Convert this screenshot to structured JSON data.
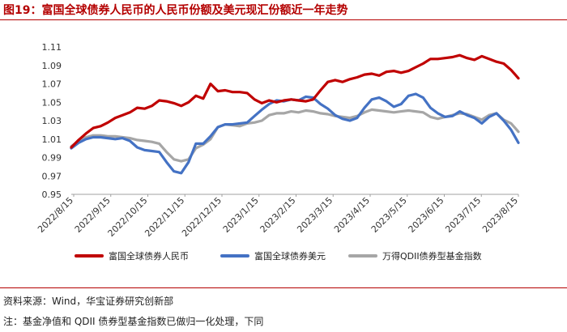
{
  "title": "图19：富国全球债券人民币的人民币份额及美元现汇份额近一年走势",
  "source": "资料来源：Wind，华宝证券研究创新部",
  "note": "注：基金净值和 QDII 债券型基金指数已做归一化处理，下同",
  "chart_data": {
    "type": "line",
    "title": "",
    "xlabel": "",
    "ylabel": "",
    "ylim": [
      0.95,
      1.11
    ],
    "yticks": [
      0.95,
      0.97,
      0.99,
      1.01,
      1.03,
      1.05,
      1.07,
      1.09,
      1.11
    ],
    "ytick_labels": [
      "0.95",
      "0.97",
      "0.99",
      "1.01",
      "1.03",
      "1.05",
      "1.07",
      "1.09",
      "1.11"
    ],
    "xticks": [
      "2022/8/15",
      "2022/9/15",
      "2022/10/15",
      "2022/11/15",
      "2022/12/15",
      "2023/1/15",
      "2023/2/15",
      "2023/3/15",
      "2023/4/15",
      "2023/5/15",
      "2023/6/15",
      "2023/7/15",
      "2023/8/15"
    ],
    "x_labels_rotated": true,
    "grid": false,
    "legend": "bottom",
    "series": [
      {
        "name": "富国全球债券人民币",
        "color": "#c00000",
        "values": [
          1.001,
          1.009,
          1.016,
          1.022,
          1.024,
          1.028,
          1.033,
          1.036,
          1.039,
          1.044,
          1.043,
          1.046,
          1.052,
          1.051,
          1.049,
          1.046,
          1.05,
          1.057,
          1.054,
          1.07,
          1.062,
          1.063,
          1.061,
          1.061,
          1.06,
          1.053,
          1.049,
          1.052,
          1.05,
          1.052,
          1.053,
          1.052,
          1.051,
          1.053,
          1.063,
          1.072,
          1.074,
          1.072,
          1.075,
          1.077,
          1.08,
          1.081,
          1.079,
          1.083,
          1.084,
          1.082,
          1.084,
          1.088,
          1.092,
          1.097,
          1.097,
          1.098,
          1.099,
          1.101,
          1.098,
          1.096,
          1.1,
          1.097,
          1.094,
          1.092,
          1.085,
          1.076
        ]
      },
      {
        "name": "富国全球债券美元",
        "color": "#4472c4",
        "values": [
          1.0,
          1.006,
          1.01,
          1.012,
          1.012,
          1.011,
          1.01,
          1.011,
          1.008,
          1.001,
          0.998,
          0.997,
          0.996,
          0.985,
          0.975,
          0.973,
          0.985,
          1.005,
          1.005,
          1.013,
          1.023,
          1.026,
          1.026,
          1.027,
          1.028,
          1.035,
          1.042,
          1.048,
          1.052,
          1.051,
          1.053,
          1.052,
          1.056,
          1.055,
          1.048,
          1.043,
          1.036,
          1.032,
          1.03,
          1.033,
          1.044,
          1.053,
          1.055,
          1.051,
          1.045,
          1.048,
          1.057,
          1.059,
          1.055,
          1.044,
          1.038,
          1.034,
          1.035,
          1.04,
          1.036,
          1.033,
          1.027,
          1.034,
          1.038,
          1.03,
          1.02,
          1.006
        ]
      },
      {
        "name": "万得QDII债券型基金指数",
        "color": "#a6a6a6",
        "values": [
          1.002,
          1.008,
          1.012,
          1.014,
          1.014,
          1.013,
          1.013,
          1.012,
          1.011,
          1.009,
          1.008,
          1.007,
          1.005,
          0.996,
          0.988,
          0.986,
          0.988,
          1.0,
          1.004,
          1.01,
          1.023,
          1.026,
          1.025,
          1.024,
          1.027,
          1.028,
          1.03,
          1.036,
          1.038,
          1.038,
          1.04,
          1.039,
          1.041,
          1.04,
          1.038,
          1.037,
          1.035,
          1.034,
          1.033,
          1.035,
          1.039,
          1.042,
          1.041,
          1.04,
          1.039,
          1.04,
          1.041,
          1.04,
          1.039,
          1.034,
          1.032,
          1.034,
          1.036,
          1.038,
          1.037,
          1.034,
          1.031,
          1.036,
          1.038,
          1.031,
          1.027,
          1.018
        ]
      }
    ]
  }
}
